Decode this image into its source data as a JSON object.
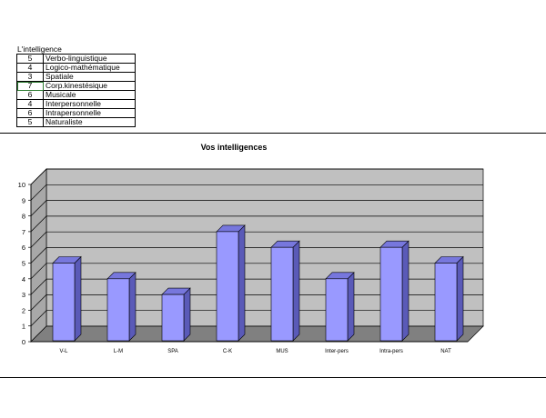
{
  "sheet": {
    "caption": "L'intelligence",
    "rows": [
      {
        "score": "5",
        "label": "Verbo-linguistique"
      },
      {
        "score": "4",
        "label": "Logico-mathématique"
      },
      {
        "score": "3",
        "label": "Spatiale"
      },
      {
        "score": "7",
        "label": "Corp.kinestésique"
      },
      {
        "score": "6",
        "label": "Musicale"
      },
      {
        "score": "4",
        "label": "Interpersonnelle"
      },
      {
        "score": "6",
        "label": "Intrapersonnelle"
      },
      {
        "score": "5",
        "label": "Naturaliste"
      }
    ],
    "selected_row": 3
  },
  "chart_data": {
    "type": "bar",
    "title": "Vos intelligences",
    "categories": [
      "V-L",
      "L-M",
      "SPA",
      "C-K",
      "MUS",
      "Inter-pers",
      "Intra-pers",
      "NAT"
    ],
    "values": [
      5,
      4,
      3,
      7,
      6,
      4,
      6,
      5
    ],
    "ylim": [
      0,
      10
    ],
    "yticks": [
      0,
      1,
      2,
      3,
      4,
      5,
      6,
      7,
      8,
      9,
      10
    ],
    "grid": true,
    "style": "3d",
    "colors": {
      "bar_front": "#9999ff",
      "bar_side": "#5a5ab8",
      "bar_top": "#7777dd",
      "wall": "#c0c0c0",
      "floor": "#808080",
      "gridline": "#000000"
    }
  }
}
